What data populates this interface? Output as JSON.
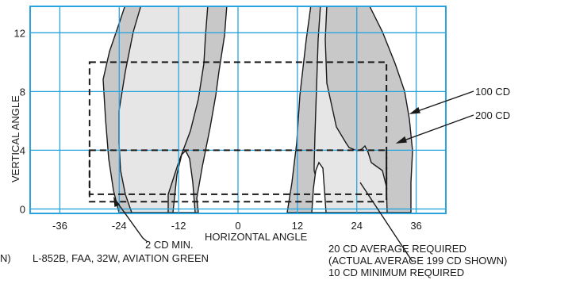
{
  "chart_data": {
    "type": "photometric-isocandela",
    "x_label": "HORIZONTAL ANGLE",
    "y_label": "VERTICAL ANGLE",
    "x_ticks": [
      -36,
      -24,
      -12,
      0,
      12,
      24,
      36
    ],
    "y_ticks": [
      0,
      4,
      8,
      12
    ],
    "xlim": [
      -42,
      42
    ],
    "ylim": [
      -0.3,
      13.8
    ],
    "grid_color": "#29a3de",
    "fill_outer_color": "#c8c8c8",
    "fill_inner_color": "#e6e6e6",
    "contours": [
      {
        "label": "100 CD"
      },
      {
        "label": "200 CD"
      }
    ],
    "requirement_boxes": [
      {
        "x": [
          -30,
          30
        ],
        "y": [
          0.5,
          4
        ]
      },
      {
        "x": [
          -30,
          30
        ],
        "y": [
          1,
          10
        ]
      }
    ],
    "callouts": [
      {
        "label": "100 CD"
      },
      {
        "label": "200 CD"
      },
      {
        "label": "2 CD MIN."
      },
      {
        "lines": [
          "20 CD AVERAGE REQUIRED",
          "(ACTUAL AVERAGE 199 CD SHOWN)",
          "10 CD MINIMUM REQUIRED"
        ]
      }
    ],
    "left_fragment": "N)",
    "caption": "L-852B, FAA, 32W, AVIATION GREEN"
  }
}
